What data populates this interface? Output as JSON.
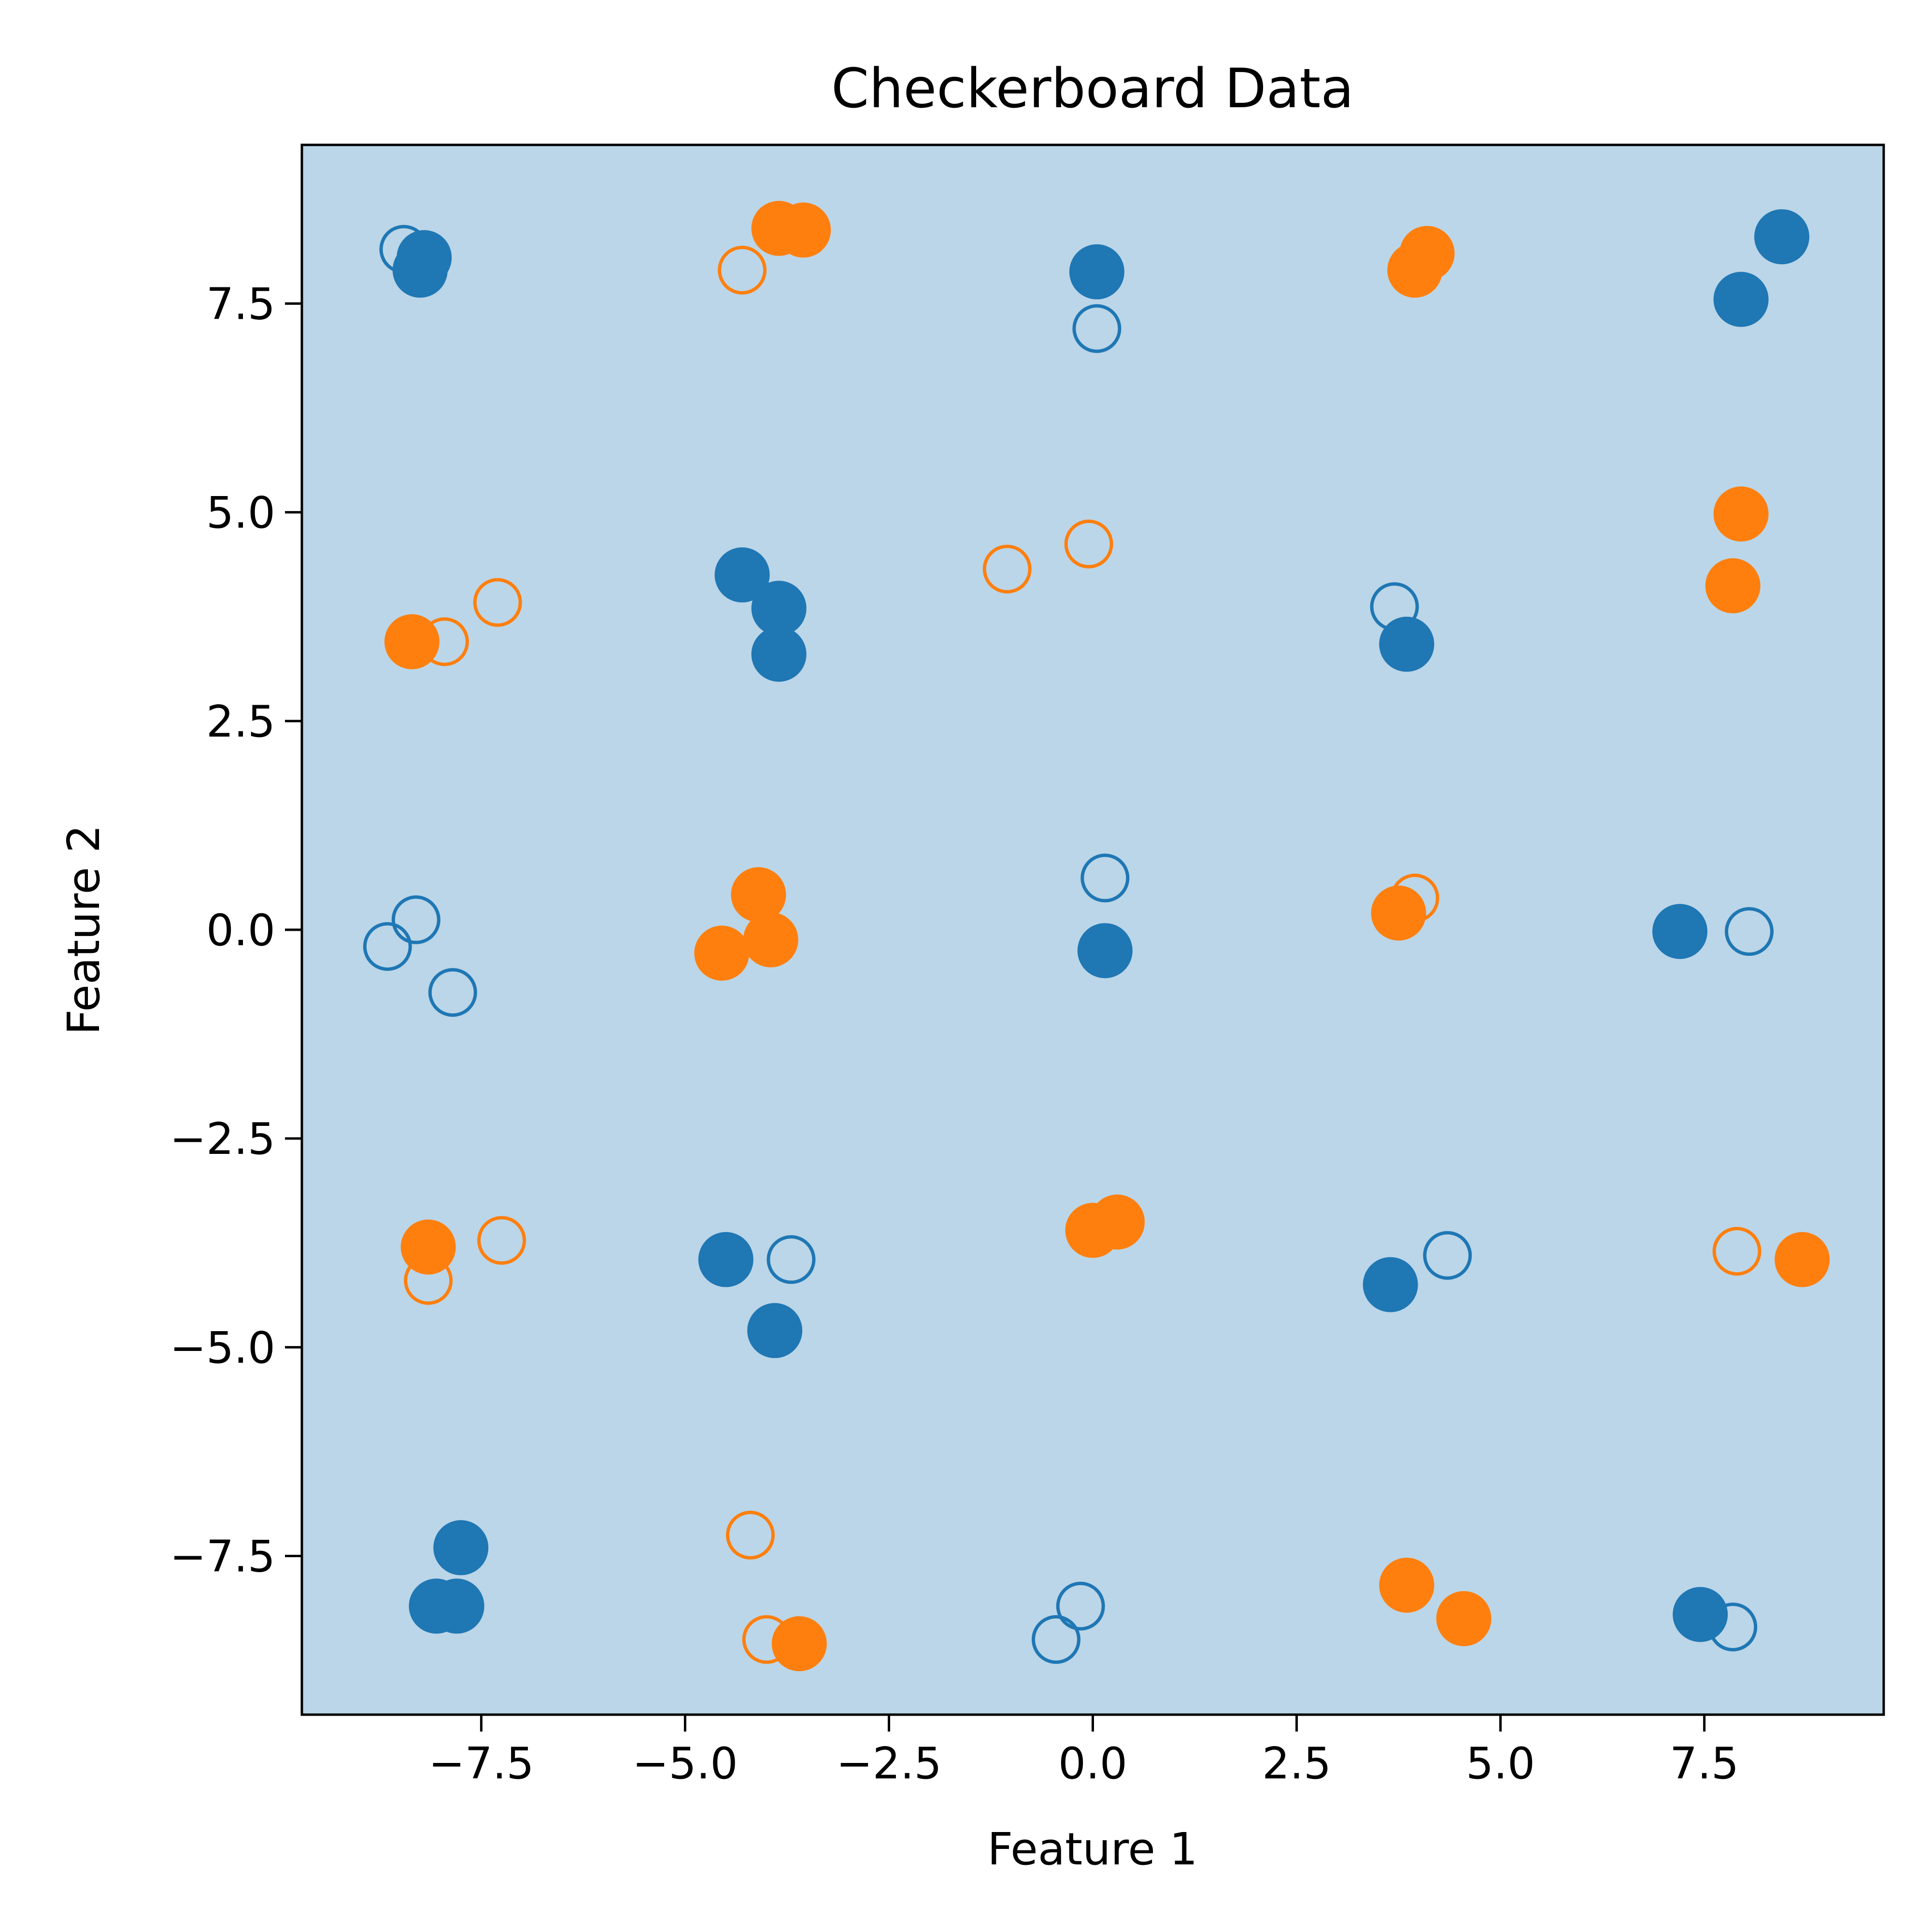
{
  "chart_data": {
    "type": "scatter",
    "title": "Checkerboard Data",
    "xlabel": "Feature 1",
    "ylabel": "Feature 2",
    "xlim": [
      -9.7,
      9.7
    ],
    "ylim": [
      -9.4,
      9.4
    ],
    "xticks": [
      -7.5,
      -5.0,
      -2.5,
      0.0,
      2.5,
      5.0,
      7.5
    ],
    "xtick_labels": [
      "−7.5",
      "−5.0",
      "−2.5",
      "0.0",
      "2.5",
      "5.0",
      "7.5"
    ],
    "yticks": [
      -7.5,
      -5.0,
      -2.5,
      0.0,
      2.5,
      5.0,
      7.5
    ],
    "ytick_labels": [
      "−7.5",
      "−5.0",
      "−2.5",
      "0.0",
      "2.5",
      "5.0",
      "7.5"
    ],
    "grid": false,
    "background_color": "#bbd6e8",
    "series": [
      {
        "color": "#1f77b4",
        "marker": "filled",
        "points": [
          [
            -8.2,
            8.05
          ],
          [
            -8.25,
            7.9
          ],
          [
            0.05,
            7.88
          ],
          [
            8.45,
            8.3
          ],
          [
            7.95,
            7.55
          ],
          [
            -4.3,
            4.25
          ],
          [
            -3.85,
            3.85
          ],
          [
            -3.85,
            3.3
          ],
          [
            3.85,
            3.42
          ],
          [
            0.15,
            -0.25
          ],
          [
            7.2,
            -0.02
          ],
          [
            -4.5,
            -3.95
          ],
          [
            -3.9,
            -4.8
          ],
          [
            3.65,
            -4.25
          ],
          [
            -7.75,
            -7.4
          ],
          [
            -7.8,
            -8.1
          ],
          [
            -8.05,
            -8.1
          ],
          [
            7.45,
            -8.2
          ]
        ]
      },
      {
        "color": "#1f77b4",
        "marker": "hollow",
        "points": [
          [
            -8.45,
            8.15
          ],
          [
            0.05,
            7.2
          ],
          [
            3.7,
            3.87
          ],
          [
            -8.3,
            0.12
          ],
          [
            -8.65,
            -0.2
          ],
          [
            -7.85,
            -0.75
          ],
          [
            0.15,
            0.62
          ],
          [
            8.05,
            -0.02
          ],
          [
            -3.7,
            -3.95
          ],
          [
            4.35,
            -3.9
          ],
          [
            -0.15,
            -8.1
          ],
          [
            -0.45,
            -8.5
          ],
          [
            7.85,
            -8.35
          ]
        ]
      },
      {
        "color": "#ff7f0e",
        "marker": "filled",
        "points": [
          [
            -3.85,
            8.4
          ],
          [
            -3.55,
            8.38
          ],
          [
            4.1,
            8.1
          ],
          [
            3.95,
            7.9
          ],
          [
            7.95,
            4.98
          ],
          [
            7.85,
            4.12
          ],
          [
            -8.35,
            3.45
          ],
          [
            -4.1,
            0.42
          ],
          [
            -4.55,
            -0.28
          ],
          [
            -3.95,
            -0.12
          ],
          [
            3.75,
            0.2
          ],
          [
            -8.15,
            -3.8
          ],
          [
            0.0,
            -3.6
          ],
          [
            0.3,
            -3.5
          ],
          [
            8.7,
            -3.95
          ],
          [
            3.85,
            -7.85
          ],
          [
            4.55,
            -8.25
          ],
          [
            -3.6,
            -8.55
          ]
        ]
      },
      {
        "color": "#ff7f0e",
        "marker": "hollow",
        "points": [
          [
            -4.3,
            7.9
          ],
          [
            -7.95,
            3.45
          ],
          [
            -7.3,
            3.92
          ],
          [
            -1.05,
            4.32
          ],
          [
            -0.05,
            4.62
          ],
          [
            3.95,
            0.38
          ],
          [
            -8.15,
            -4.2
          ],
          [
            -7.25,
            -3.72
          ],
          [
            7.9,
            -3.85
          ],
          [
            -4.2,
            -7.25
          ],
          [
            -4.0,
            -8.5
          ]
        ]
      }
    ]
  }
}
